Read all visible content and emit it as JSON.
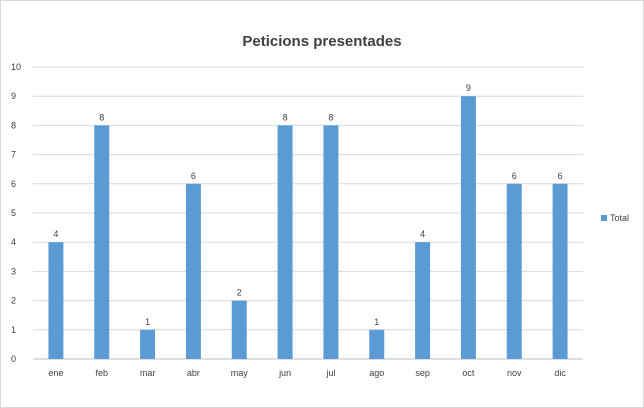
{
  "chart_data": {
    "type": "bar",
    "title": "Peticions presentades",
    "xlabel": "",
    "ylabel": "",
    "ylim": [
      0,
      10
    ],
    "yticks": [
      "0",
      "1",
      "2",
      "3",
      "4",
      "5",
      "6",
      "7",
      "8",
      "9",
      "10"
    ],
    "categories": [
      "ene",
      "feb",
      "mar",
      "abr",
      "may",
      "jun",
      "jul",
      "ago",
      "sep",
      "oct",
      "nov",
      "dic"
    ],
    "series": [
      {
        "name": "Total",
        "values": [
          4,
          8,
          1,
          6,
          2,
          8,
          8,
          1,
          4,
          9,
          6,
          6
        ]
      }
    ],
    "color": "#5b9bd5",
    "grid": true,
    "legend_position": "right"
  }
}
